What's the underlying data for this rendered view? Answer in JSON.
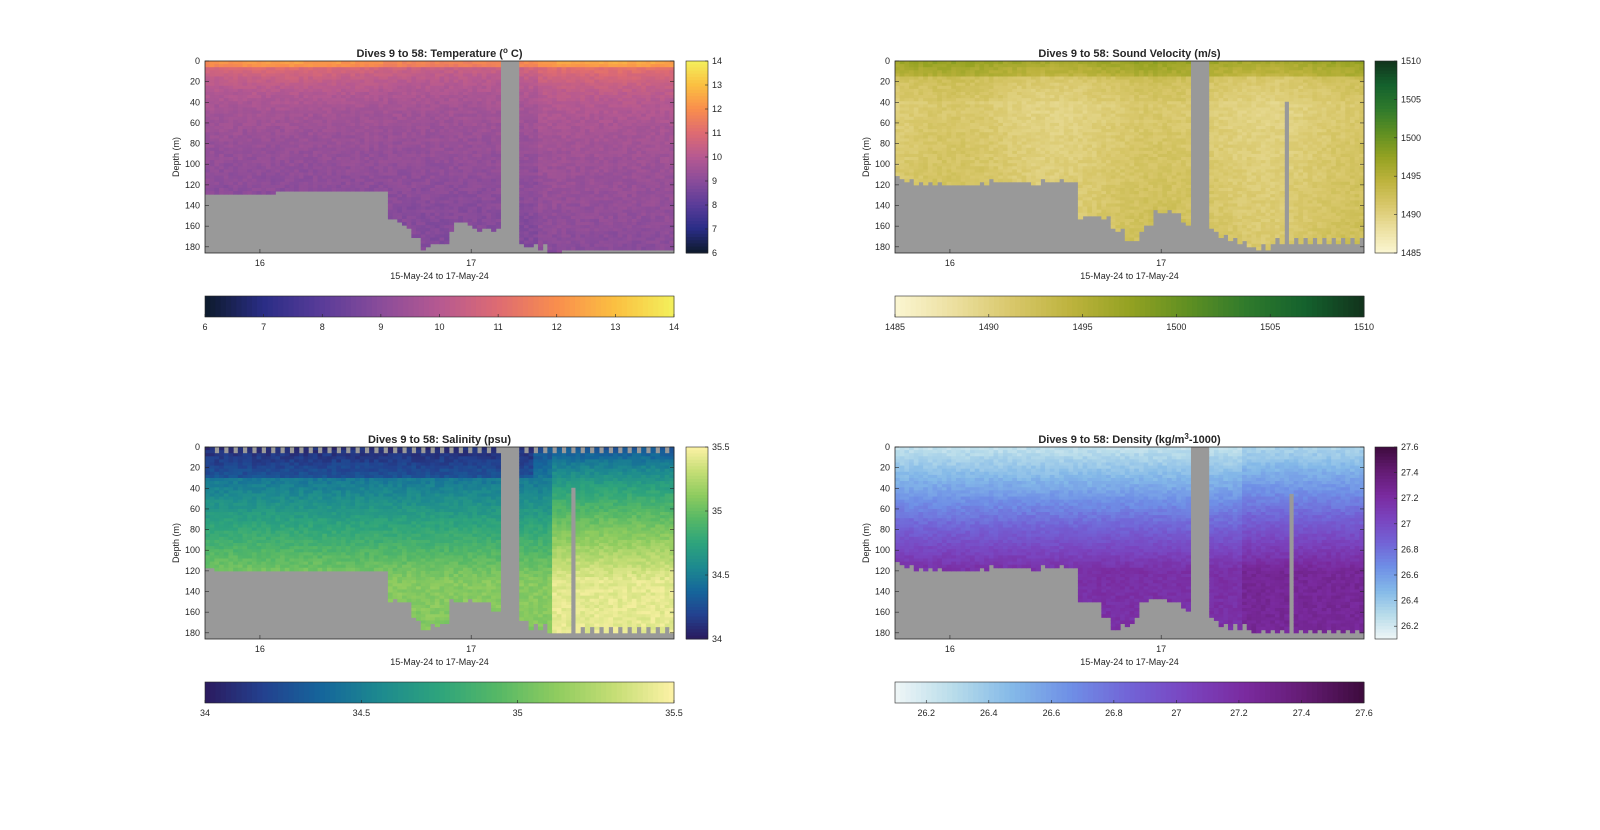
{
  "chart_data": [
    {
      "type": "heatmap",
      "title": "Dives 9 to 58: Temperature (",
      "title_sup": "o",
      "title_end": " C)",
      "ylabel": "Depth (m)",
      "xlabel": "15-May-24 to 17-May-24",
      "x_ticks": [
        "16",
        "17"
      ],
      "x_range": [
        15.74,
        17.96
      ],
      "y_ticks": [
        0,
        20,
        40,
        60,
        80,
        100,
        120,
        140,
        160,
        180
      ],
      "ylim": [
        0,
        186
      ],
      "colorbar_ticks": [
        6,
        7,
        8,
        9,
        10,
        11,
        12,
        13,
        14
      ],
      "clim": [
        6,
        14
      ],
      "colormap": [
        "#0d1a2b",
        "#2a2d86",
        "#5a3c99",
        "#8a4c9a",
        "#b65991",
        "#de6b72",
        "#f98e4d",
        "#fbc041",
        "#f3f05c"
      ],
      "bottom_depth": [
        128,
        128,
        129,
        129,
        129,
        129,
        129,
        129,
        128,
        128,
        128,
        128,
        128,
        128,
        128,
        127,
        127,
        127,
        127,
        127,
        127,
        127,
        127,
        127,
        127,
        127,
        127,
        127,
        127,
        127,
        127,
        127,
        127,
        127,
        127,
        127,
        127,
        127,
        127,
        154,
        153,
        156,
        158,
        163,
        172,
        172,
        183,
        180,
        177,
        177,
        178,
        178,
        165,
        155,
        156,
        156,
        160,
        161,
        164,
        162,
        163,
        165,
        163,
        186,
        186,
        186,
        186,
        176,
        179,
        181,
        176,
        184,
        176,
        186,
        186,
        186,
        184,
        184,
        184,
        184,
        184,
        184,
        184,
        184,
        184,
        184,
        184,
        184,
        184,
        184,
        184,
        184,
        184,
        184,
        184,
        184,
        184,
        184,
        184,
        184
      ],
      "gap_columns": [
        63,
        64,
        65,
        66
      ]
    },
    {
      "type": "heatmap",
      "title": "Dives 9 to 58: Sound Velocity (m/s)",
      "ylabel": "Depth (m)",
      "xlabel": "15-May-24 to 17-May-24",
      "x_ticks": [
        "16",
        "17"
      ],
      "x_range": [
        15.74,
        17.96
      ],
      "y_ticks": [
        0,
        20,
        40,
        60,
        80,
        100,
        120,
        140,
        160,
        180
      ],
      "ylim": [
        0,
        186
      ],
      "colorbar_ticks": [
        1485,
        1490,
        1495,
        1500,
        1505,
        1510
      ],
      "clim": [
        1485,
        1510
      ],
      "colormap": [
        "#fbf6d2",
        "#ece0a0",
        "#d8c76a",
        "#bdb33d",
        "#94a222",
        "#5f8f22",
        "#2f7a2c",
        "#14612d",
        "#12331c"
      ],
      "bottom_depth": [
        112,
        114,
        117,
        115,
        120,
        117,
        120,
        117,
        120,
        118,
        120,
        120,
        120,
        120,
        120,
        120,
        120,
        120,
        118,
        119,
        115,
        118,
        118,
        118,
        116,
        118,
        117,
        118,
        118,
        120,
        119,
        115,
        118,
        118,
        117,
        115,
        117,
        116,
        116,
        153,
        150,
        151,
        150,
        150,
        154,
        150,
        162,
        166,
        163,
        173,
        175,
        173,
        165,
        160,
        160,
        145,
        148,
        146,
        145,
        146,
        148,
        157,
        159,
        186,
        186,
        186,
        186,
        162,
        165,
        171,
        167,
        175,
        171,
        177,
        173,
        179,
        181,
        182,
        178,
        182,
        178,
        172,
        178,
        172,
        178,
        172,
        178,
        172,
        178,
        172,
        178,
        172,
        178,
        172,
        178,
        172,
        178,
        172,
        178,
        172
      ],
      "gap_columns": [
        63,
        64,
        65,
        66
      ],
      "gap_columns_partial": [
        [
          83,
          40
        ]
      ]
    },
    {
      "type": "heatmap",
      "title": "Dives 9 to 58: Salinity (psu)",
      "ylabel": "Depth (m)",
      "xlabel": "15-May-24 to 17-May-24",
      "x_ticks": [
        "16",
        "17"
      ],
      "x_range": [
        15.74,
        17.96
      ],
      "y_ticks": [
        0,
        20,
        40,
        60,
        80,
        100,
        120,
        140,
        160,
        180
      ],
      "ylim": [
        0,
        186
      ],
      "colorbar_ticks": [
        34,
        34.5,
        35,
        35.5
      ],
      "clim": [
        34,
        35.5
      ],
      "colormap": [
        "#2b1a5e",
        "#23418f",
        "#15669b",
        "#1d8a8f",
        "#2ea47c",
        "#56b866",
        "#8fcc5f",
        "#c6de76",
        "#fdf2a6"
      ],
      "bottom_depth": [
        116,
        118,
        121,
        119,
        121,
        121,
        121,
        121,
        121,
        121,
        121,
        121,
        121,
        121,
        121,
        121,
        121,
        121,
        121,
        121,
        121,
        121,
        121,
        121,
        121,
        121,
        121,
        121,
        121,
        121,
        121,
        121,
        121,
        121,
        121,
        121,
        121,
        121,
        121,
        150,
        148,
        151,
        150,
        150,
        166,
        167,
        178,
        177,
        172,
        173,
        172,
        170,
        148,
        150,
        149,
        149,
        148,
        149,
        150,
        150,
        150,
        158,
        158,
        186,
        186,
        186,
        186,
        169,
        169,
        176,
        172,
        178,
        172,
        180,
        180,
        180,
        180,
        180,
        174,
        180,
        174,
        180,
        174,
        180,
        174,
        180,
        174,
        180,
        174,
        180,
        174,
        180,
        174,
        180,
        174,
        180,
        174,
        180,
        174,
        180
      ],
      "gap_columns": [
        63,
        64,
        65,
        66
      ],
      "gap_columns_partial": [
        [
          78,
          40
        ]
      ],
      "top_gap_columns": [
        2,
        4,
        6,
        8,
        10,
        12,
        14,
        16,
        18,
        20,
        22,
        24,
        26,
        28,
        30,
        32,
        34,
        36,
        38,
        40,
        42,
        44,
        46,
        48,
        50,
        52,
        54,
        56,
        58,
        60,
        62,
        68,
        70,
        72,
        74,
        76,
        78,
        80,
        82,
        84,
        86,
        88,
        90,
        92,
        94,
        96,
        98
      ]
    },
    {
      "type": "heatmap",
      "title": "Dives 9 to 58: Density (kg/m",
      "title_sup": "3",
      "title_end": "-1000)",
      "ylabel": "Depth (m)",
      "xlabel": "15-May-24 to 17-May-24",
      "x_ticks": [
        "16",
        "17"
      ],
      "x_range": [
        15.74,
        17.96
      ],
      "y_ticks": [
        0,
        20,
        40,
        60,
        80,
        100,
        120,
        140,
        160,
        180
      ],
      "ylim": [
        0,
        186
      ],
      "colorbar_ticks": [
        26.2,
        26.4,
        26.6,
        26.8,
        27,
        27.2,
        27.4,
        27.6
      ],
      "colorbar_tick_labels": [
        "26.2",
        "26.4",
        "26.6",
        "26.8",
        "27",
        "27.2",
        "27.4",
        "27.6"
      ],
      "clim": [
        26.1,
        27.6
      ],
      "colormap": [
        "#eff6f7",
        "#b8dcea",
        "#84b9e8",
        "#6f8fe6",
        "#7263d6",
        "#7a44bf",
        "#7a2a9e",
        "#631b72",
        "#3d0b3d"
      ],
      "bottom_depth": [
        112,
        114,
        117,
        115,
        120,
        117,
        120,
        117,
        120,
        118,
        120,
        120,
        120,
        120,
        120,
        120,
        120,
        120,
        118,
        119,
        115,
        118,
        118,
        118,
        116,
        118,
        117,
        118,
        118,
        120,
        119,
        115,
        118,
        118,
        117,
        115,
        117,
        116,
        116,
        150,
        149,
        150,
        150,
        150,
        165,
        165,
        177,
        176,
        170,
        173,
        172,
        165,
        150,
        150,
        148,
        148,
        146,
        147,
        149,
        150,
        150,
        155,
        158,
        186,
        186,
        186,
        186,
        165,
        167,
        175,
        170,
        177,
        171,
        178,
        172,
        178,
        181,
        181,
        176,
        181,
        176,
        181,
        176,
        181,
        176,
        181,
        176,
        181,
        176,
        181,
        176,
        181,
        176,
        181,
        176,
        181,
        176,
        181,
        176,
        181
      ],
      "gap_columns": [
        63,
        64,
        65,
        66
      ],
      "gap_columns_partial": [
        [
          84,
          44
        ]
      ]
    }
  ]
}
